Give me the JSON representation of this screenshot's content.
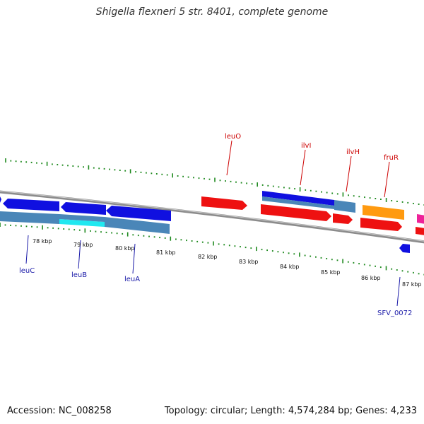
{
  "title": "Shigella flexneri 5 str. 8401, complete genome",
  "footer": {
    "accession": "Accession: NC_008258",
    "summary": "Topology: circular; Length: 4,574,284 bp; Genes: 4,233"
  },
  "colors": {
    "backbone": "#8c8c8c",
    "ticks": "#1f8a1f",
    "forward_label": "#cc0000",
    "reverse_label": "#1a1aa8",
    "cds_blue": "#1010e0",
    "steel": "#4a86b8",
    "cyan": "#20e8f0",
    "red": "#ee1111",
    "orange": "#ff9a10",
    "magenta": "#ee2299"
  },
  "ruler": {
    "unit": "kbp",
    "labels": [
      "78 kbp",
      "79 kbp",
      "80 kbp",
      "81 kbp",
      "82 kbp",
      "83 kbp",
      "84 kbp",
      "85 kbp",
      "86 kbp",
      "87 kbp"
    ]
  },
  "genes": {
    "forward_labels": [
      "leuO",
      "ilvI",
      "ilvH",
      "fruR"
    ],
    "reverse_labels": [
      "leuC",
      "leuB",
      "leuA",
      "SFV_0072"
    ]
  }
}
